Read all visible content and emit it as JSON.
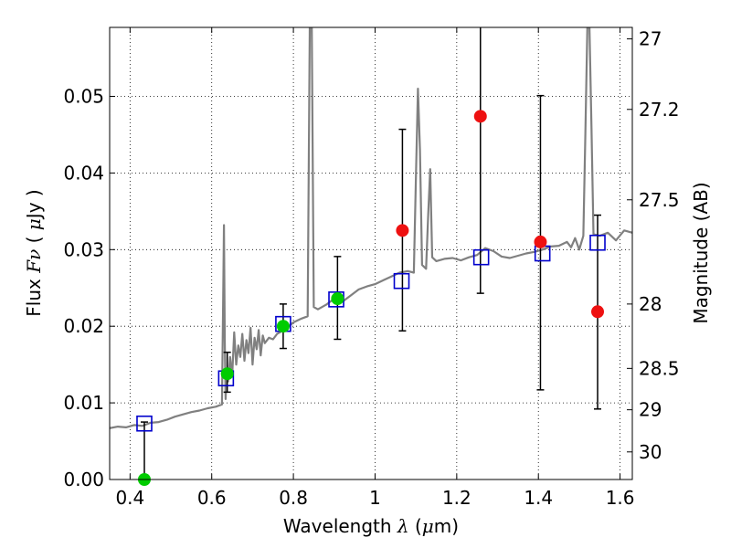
{
  "chart_data": {
    "type": "scatter",
    "xlabel": "Wavelength  λ (μm)",
    "ylabel": "Flux  Fν  ( μJy )",
    "ylabel_right": "Magnitude (AB)",
    "xlim": [
      0.35,
      1.63
    ],
    "ylim": [
      0.0,
      0.059
    ],
    "grid": true,
    "x_ticks": [
      0.4,
      0.6,
      0.8,
      1.0,
      1.2,
      1.4,
      1.6
    ],
    "x_tick_labels": [
      "0.4",
      "0.6",
      "0.8",
      "1",
      "1.2",
      "1.4",
      "1.6"
    ],
    "y_ticks": [
      0.0,
      0.01,
      0.02,
      0.03,
      0.04,
      0.05
    ],
    "y_tick_labels": [
      "0.00",
      "0.01",
      "0.02",
      "0.03",
      "0.04",
      "0.05"
    ],
    "right_ticks": [
      {
        "label": "27",
        "flux": 0.0575
      },
      {
        "label": "27.2",
        "flux": 0.0483
      },
      {
        "label": "27.5",
        "flux": 0.0365
      },
      {
        "label": "28",
        "flux": 0.0229
      },
      {
        "label": "28.5",
        "flux": 0.0145
      },
      {
        "label": "29",
        "flux": 0.0091
      },
      {
        "label": "30",
        "flux": 0.0036
      }
    ],
    "series": [
      {
        "kind": "model_spectrum",
        "color": "#808080",
        "points": [
          [
            0.35,
            0.0067
          ],
          [
            0.37,
            0.0069
          ],
          [
            0.39,
            0.0068
          ],
          [
            0.41,
            0.0071
          ],
          [
            0.43,
            0.007
          ],
          [
            0.45,
            0.0074
          ],
          [
            0.47,
            0.0075
          ],
          [
            0.49,
            0.0078
          ],
          [
            0.51,
            0.0082
          ],
          [
            0.53,
            0.0085
          ],
          [
            0.55,
            0.0088
          ],
          [
            0.57,
            0.009
          ],
          [
            0.59,
            0.0093
          ],
          [
            0.61,
            0.0095
          ],
          [
            0.625,
            0.0098
          ],
          [
            0.628,
            0.023
          ],
          [
            0.63,
            0.0332
          ],
          [
            0.632,
            0.018
          ],
          [
            0.634,
            0.0105
          ],
          [
            0.636,
            0.013
          ],
          [
            0.64,
            0.0128
          ],
          [
            0.645,
            0.016
          ],
          [
            0.65,
            0.0135
          ],
          [
            0.655,
            0.0192
          ],
          [
            0.66,
            0.015
          ],
          [
            0.665,
            0.0175
          ],
          [
            0.67,
            0.016
          ],
          [
            0.675,
            0.019
          ],
          [
            0.68,
            0.0155
          ],
          [
            0.685,
            0.0182
          ],
          [
            0.69,
            0.0165
          ],
          [
            0.695,
            0.0198
          ],
          [
            0.7,
            0.015
          ],
          [
            0.705,
            0.0185
          ],
          [
            0.71,
            0.017
          ],
          [
            0.715,
            0.0195
          ],
          [
            0.72,
            0.0162
          ],
          [
            0.725,
            0.0188
          ],
          [
            0.73,
            0.0178
          ],
          [
            0.74,
            0.0185
          ],
          [
            0.75,
            0.0183
          ],
          [
            0.76,
            0.019
          ],
          [
            0.78,
            0.0196
          ],
          [
            0.8,
            0.0205
          ],
          [
            0.82,
            0.021
          ],
          [
            0.835,
            0.0213
          ],
          [
            0.84,
            0.059
          ],
          [
            0.845,
            0.059
          ],
          [
            0.85,
            0.0225
          ],
          [
            0.86,
            0.0222
          ],
          [
            0.88,
            0.0228
          ],
          [
            0.9,
            0.0236
          ],
          [
            0.92,
            0.0232
          ],
          [
            0.94,
            0.024
          ],
          [
            0.96,
            0.0248
          ],
          [
            0.98,
            0.0252
          ],
          [
            1.0,
            0.0255
          ],
          [
            1.02,
            0.026
          ],
          [
            1.04,
            0.0265
          ],
          [
            1.06,
            0.027
          ],
          [
            1.08,
            0.0272
          ],
          [
            1.095,
            0.027
          ],
          [
            1.1,
            0.0395
          ],
          [
            1.105,
            0.051
          ],
          [
            1.11,
            0.043
          ],
          [
            1.115,
            0.028
          ],
          [
            1.125,
            0.0275
          ],
          [
            1.13,
            0.0345
          ],
          [
            1.135,
            0.0405
          ],
          [
            1.14,
            0.029
          ],
          [
            1.15,
            0.0285
          ],
          [
            1.17,
            0.0288
          ],
          [
            1.19,
            0.0289
          ],
          [
            1.21,
            0.0286
          ],
          [
            1.23,
            0.029
          ],
          [
            1.25,
            0.0293
          ],
          [
            1.27,
            0.0302
          ],
          [
            1.29,
            0.0298
          ],
          [
            1.31,
            0.0291
          ],
          [
            1.33,
            0.0289
          ],
          [
            1.35,
            0.0292
          ],
          [
            1.37,
            0.0295
          ],
          [
            1.39,
            0.0297
          ],
          [
            1.41,
            0.03
          ],
          [
            1.43,
            0.0304
          ],
          [
            1.45,
            0.0305
          ],
          [
            1.47,
            0.031
          ],
          [
            1.48,
            0.0303
          ],
          [
            1.49,
            0.0315
          ],
          [
            1.5,
            0.03
          ],
          [
            1.51,
            0.0318
          ],
          [
            1.515,
            0.045
          ],
          [
            1.52,
            0.059
          ],
          [
            1.525,
            0.059
          ],
          [
            1.53,
            0.046
          ],
          [
            1.535,
            0.032
          ],
          [
            1.55,
            0.0318
          ],
          [
            1.57,
            0.0322
          ],
          [
            1.59,
            0.0312
          ],
          [
            1.61,
            0.0325
          ],
          [
            1.63,
            0.0322
          ]
        ]
      },
      {
        "kind": "model_photometry",
        "marker": "open-square",
        "color": "#0000cc",
        "points": [
          [
            0.435,
            0.0073
          ],
          [
            0.635,
            0.0132
          ],
          [
            0.775,
            0.0203
          ],
          [
            0.905,
            0.0235
          ],
          [
            1.065,
            0.0259
          ],
          [
            1.26,
            0.029
          ],
          [
            1.41,
            0.0295
          ],
          [
            1.545,
            0.0309
          ]
        ]
      },
      {
        "kind": "detections",
        "marker": "filled-circle",
        "color": "#00cc00",
        "points": [
          {
            "x": 0.435,
            "y": 0.0,
            "yerr_low": 0.0,
            "yerr_high": 0.0075
          },
          {
            "x": 0.638,
            "y": 0.0138,
            "yerr_low": 0.0114,
            "yerr_high": 0.0166
          },
          {
            "x": 0.775,
            "y": 0.02,
            "yerr_low": 0.0171,
            "yerr_high": 0.0229
          },
          {
            "x": 0.908,
            "y": 0.0236,
            "yerr_low": 0.0183,
            "yerr_high": 0.0291
          }
        ]
      },
      {
        "kind": "upper_limits",
        "marker": "filled-circle",
        "color": "#ee1111",
        "points": [
          {
            "x": 1.067,
            "y": 0.0325,
            "yerr_low": 0.0194,
            "yerr_high": 0.0457
          },
          {
            "x": 1.258,
            "y": 0.0474,
            "yerr_low": 0.0243,
            "yerr_high": 0.06
          },
          {
            "x": 1.405,
            "y": 0.031,
            "yerr_low": 0.0117,
            "yerr_high": 0.0501
          },
          {
            "x": 1.545,
            "y": 0.0219,
            "yerr_low": 0.0092,
            "yerr_high": 0.0345
          }
        ]
      }
    ]
  }
}
